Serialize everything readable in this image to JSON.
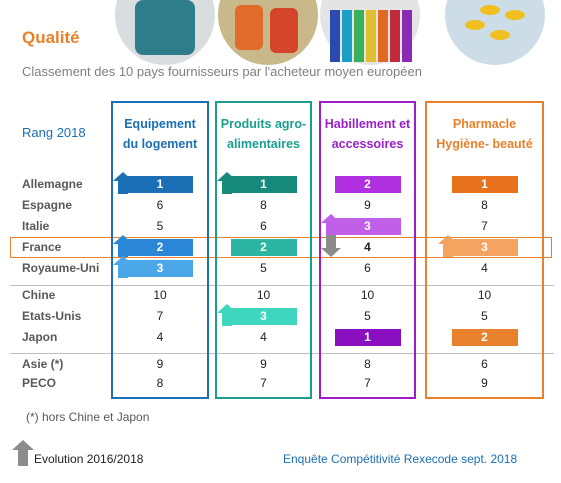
{
  "header": {
    "title": "Qualité",
    "subtitle": "Classement des 10 pays fournisseurs par l'acheteur moyen européen"
  },
  "table": {
    "rank_label": "Rang 2018",
    "columns": [
      [
        "Equipement",
        "du logement"
      ],
      [
        "Produits agro-",
        "alimentaires"
      ],
      [
        "Habillement et",
        "accessoires"
      ],
      [
        "Pharmacle",
        "Hygiène- beauté"
      ]
    ],
    "rows": [
      [
        "Allemagne",
        1,
        1,
        2,
        1
      ],
      [
        "Espagne",
        6,
        8,
        9,
        8
      ],
      [
        "Italie",
        5,
        6,
        3,
        7
      ],
      [
        "France",
        2,
        2,
        4,
        3
      ],
      [
        "Royaume-Uni",
        3,
        5,
        6,
        4
      ],
      [
        "Chine",
        10,
        10,
        10,
        10
      ],
      [
        "Etats-Unis",
        7,
        3,
        5,
        5
      ],
      [
        "Japon",
        4,
        4,
        1,
        2
      ],
      [
        "Asie (*)",
        9,
        9,
        8,
        6
      ],
      [
        "PECO",
        8,
        7,
        7,
        9
      ]
    ]
  },
  "footer": {
    "note": "(*) hors Chine et Japon",
    "legend": "Evolution 2016/2018",
    "source": "Enquête Compétitivité Rexecode sept. 2018"
  }
}
